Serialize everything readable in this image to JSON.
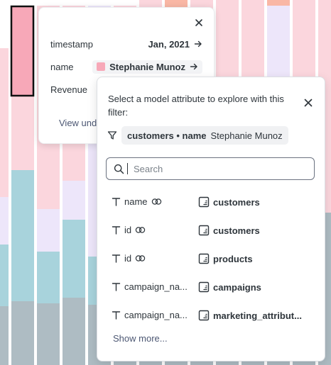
{
  "colors": {
    "pink": "#fbd6dd",
    "pink_dark": "#f7a8b8",
    "lavender": "#ede6fa",
    "teal": "#a8d3dc",
    "slate": "#aebcc3",
    "orange_top": "#f9b7a5"
  },
  "tooltip": {
    "rows": [
      {
        "key": "timestamp",
        "value": "Jan, 2021"
      },
      {
        "key": "name",
        "value": "Stephanie Munoz"
      },
      {
        "key": "Revenue",
        "value": ""
      }
    ],
    "view_link": "View und"
  },
  "explore": {
    "prompt": "Select a model attribute to explore with this filter:",
    "filter": {
      "label": "customers • name",
      "value": "Stephanie Munoz"
    },
    "search": {
      "placeholder": "Search",
      "value": ""
    },
    "items": [
      {
        "attr": "name",
        "model": "customers",
        "link_icon": true
      },
      {
        "attr": "id",
        "model": "customers",
        "link_icon": true
      },
      {
        "attr": "id",
        "model": "products",
        "link_icon": true
      },
      {
        "attr": "campaign_na...",
        "model": "campaigns",
        "link_icon": false
      },
      {
        "attr": "campaign_na...",
        "model": "marketing_attribut...",
        "link_icon": false
      }
    ],
    "show_more": "Show more..."
  }
}
